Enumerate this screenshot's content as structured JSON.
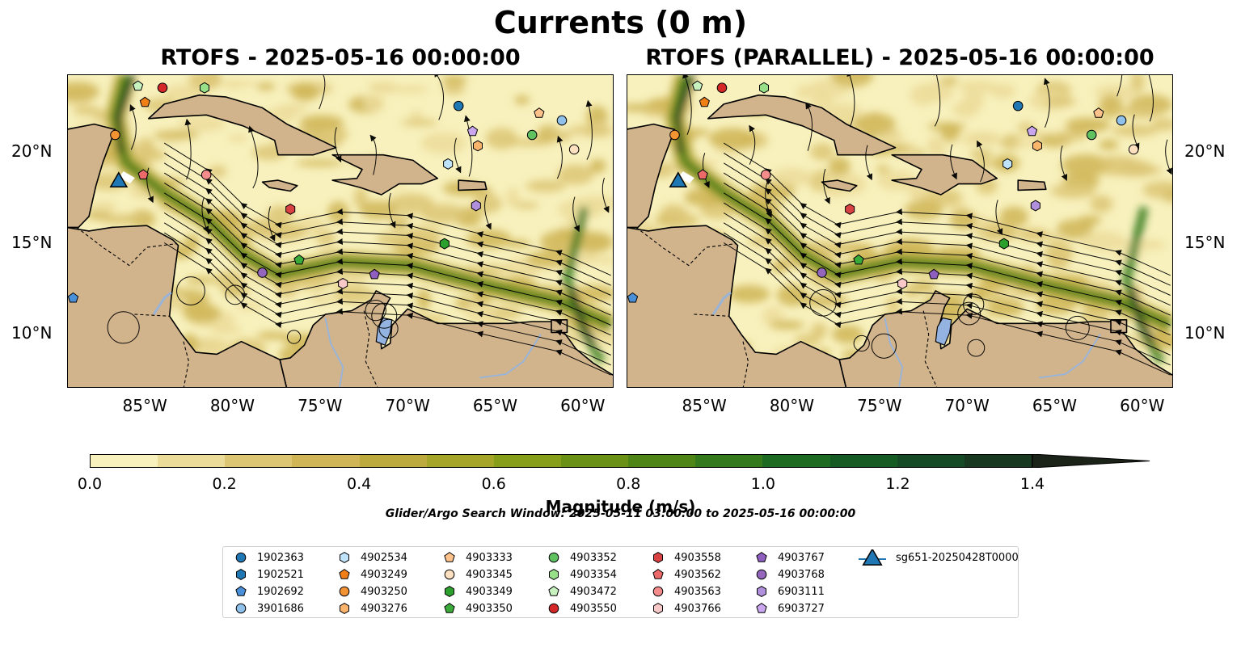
{
  "figure": {
    "title": "Currents (0 m)",
    "panels": [
      {
        "title": "RTOFS - 2025-05-16 00:00:00"
      },
      {
        "title": "RTOFS (PARALLEL) - 2025-05-16 00:00:00"
      }
    ],
    "lon_ticks": [
      "85°W",
      "80°W",
      "75°W",
      "70°W",
      "65°W",
      "60°W"
    ],
    "lat_ticks": [
      "20°N",
      "15°N",
      "10°N"
    ],
    "colorbar": {
      "label": "Magnitude (m/s)",
      "ticks": [
        "0.0",
        "0.2",
        "0.4",
        "0.6",
        "0.8",
        "1.0",
        "1.2",
        "1.4"
      ],
      "colors": [
        "#f8f1bd",
        "#ecdc9a",
        "#dcc674",
        "#cfb556",
        "#bcaa3e",
        "#a5a52a",
        "#879e1b",
        "#6a9015",
        "#4f8417",
        "#347a1c",
        "#1d6a22",
        "#165a24",
        "#164a27",
        "#18391f",
        "#1a2d1a",
        "#1b2217"
      ],
      "extend_color": "#1b2217"
    },
    "search_window": "Glider/Argo Search Window: 2025-05-11 03:00:00 to 2025-05-16 00:00:00",
    "land_color": "#d2b48c",
    "water_color": "#94b3e0",
    "river_color": "#9ab4d8"
  },
  "chart_data": {
    "type": "scatter",
    "title": "Currents (0 m)",
    "xlabel": "",
    "ylabel": "",
    "xlim": [
      -89.5,
      -58.3
    ],
    "ylim": [
      7.0,
      24.3
    ],
    "colorbar_range": [
      0.0,
      1.5
    ],
    "colorbar_label": "Magnitude (m/s)",
    "panels": [
      "RTOFS - 2025-05-16 00:00:00",
      "RTOFS (PARALLEL) - 2025-05-16 00:00:00"
    ],
    "series": [
      {
        "name": "1902363",
        "marker": "circle",
        "color": "#1f77b4",
        "x": -67.2,
        "y": 22.6
      },
      {
        "name": "1902521",
        "marker": "hexagon",
        "color": "#1f77b4",
        "x": null,
        "y": null
      },
      {
        "name": "1902692",
        "marker": "pentagon",
        "color": "#4a90d9",
        "x": -89.2,
        "y": 12.0
      },
      {
        "name": "3901686",
        "marker": "circle",
        "color": "#8fc1ea",
        "x": -61.3,
        "y": 21.8
      },
      {
        "name": "4902534",
        "marker": "hexagon",
        "color": "#bfe3fb",
        "x": -67.8,
        "y": 19.4
      },
      {
        "name": "4903249",
        "marker": "pentagon",
        "color": "#f07f16",
        "x": -85.1,
        "y": 22.8
      },
      {
        "name": "4903250",
        "marker": "circle",
        "color": "#f39332",
        "x": -86.8,
        "y": 21.0
      },
      {
        "name": "4903276",
        "marker": "hexagon",
        "color": "#fbb46c",
        "x": -66.1,
        "y": 20.4
      },
      {
        "name": "4903333",
        "marker": "pentagon",
        "color": "#fdc28b",
        "x": -62.6,
        "y": 22.2
      },
      {
        "name": "4903345",
        "marker": "circle",
        "color": "#fde0c0",
        "x": -60.6,
        "y": 20.2
      },
      {
        "name": "4903349",
        "marker": "hexagon",
        "color": "#2ca02c",
        "x": -68.0,
        "y": 15.0
      },
      {
        "name": "4903350",
        "marker": "pentagon",
        "color": "#3aaa3a",
        "x": -76.3,
        "y": 14.1
      },
      {
        "name": "4903352",
        "marker": "circle",
        "color": "#5fc15f",
        "x": -63.0,
        "y": 21.0
      },
      {
        "name": "4903354",
        "marker": "hexagon",
        "color": "#98df8a",
        "x": -81.7,
        "y": 23.6
      },
      {
        "name": "4903472",
        "marker": "pentagon",
        "color": "#c8f1c0",
        "x": -85.5,
        "y": 23.7
      },
      {
        "name": "4903550",
        "marker": "circle",
        "color": "#d62728",
        "x": -84.1,
        "y": 23.6
      },
      {
        "name": "4903558",
        "marker": "hexagon",
        "color": "#d94242",
        "x": -76.8,
        "y": 16.9
      },
      {
        "name": "4903562",
        "marker": "pentagon",
        "color": "#ec6a6a",
        "x": -85.2,
        "y": 18.8
      },
      {
        "name": "4903563",
        "marker": "circle",
        "color": "#f48c8c",
        "x": -81.6,
        "y": 18.8
      },
      {
        "name": "4903766",
        "marker": "hexagon",
        "color": "#f9c8c8",
        "x": -73.8,
        "y": 12.8
      },
      {
        "name": "4903767",
        "marker": "pentagon",
        "color": "#8f5fbf",
        "x": -72.0,
        "y": 13.3
      },
      {
        "name": "4903768",
        "marker": "circle",
        "color": "#9467bd",
        "x": -78.4,
        "y": 13.4
      },
      {
        "name": "6903111",
        "marker": "hexagon",
        "color": "#b08fdc",
        "x": -66.2,
        "y": 17.1
      },
      {
        "name": "6903727",
        "marker": "pentagon",
        "color": "#c9a6ee",
        "x": -66.4,
        "y": 21.2
      },
      {
        "name": "sg651-20250428T0000",
        "marker": "triangle",
        "color": "#1f77b4",
        "x": -86.6,
        "y": 18.5
      }
    ]
  }
}
